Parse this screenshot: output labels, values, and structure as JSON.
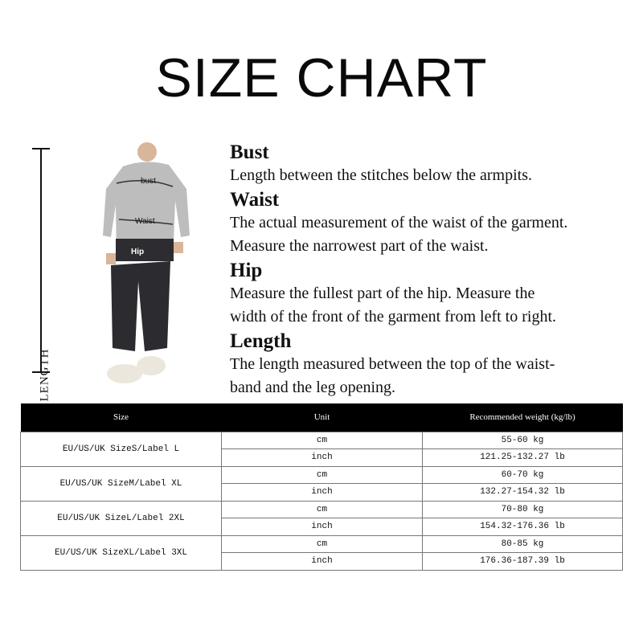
{
  "title": "SIZE CHART",
  "figure": {
    "length_label": "LENGTH",
    "bust_tag": "bust",
    "waist_tag": "Waist",
    "hip_tag": "Hip"
  },
  "sections": [
    {
      "heading": "Bust",
      "lines": [
        "Length between the stitches below the armpits."
      ]
    },
    {
      "heading": "Waist",
      "lines": [
        "The actual measurement of the waist of the garment.",
        "Measure the narrowest part of the waist."
      ]
    },
    {
      "heading": "Hip",
      "lines": [
        "Measure the fullest part of the  hip. Measure the",
        "width of the front of the garment from left to right."
      ]
    },
    {
      "heading": "Length",
      "lines": [
        "The length measured between the top of the waist-",
        "band and the leg opening."
      ]
    }
  ],
  "table": {
    "headers": [
      "Size",
      "Unit",
      "Recommended weight (kg/lb)"
    ],
    "rows": [
      {
        "size": "EU/US/UK SizeS/Label L",
        "cm": "55-60 kg",
        "inch": "121.25-132.27 lb"
      },
      {
        "size": "EU/US/UK SizeM/Label XL",
        "cm": "60-70 kg",
        "inch": "132.27-154.32 lb"
      },
      {
        "size": "EU/US/UK SizeL/Label 2XL",
        "cm": "70-80 kg",
        "inch": "154.32-176.36 lb"
      },
      {
        "size": "EU/US/UK SizeXL/Label 3XL",
        "cm": "80-85 kg",
        "inch": "176.36-187.39 lb"
      }
    ],
    "unit_cm": "cm",
    "unit_inch": "inch"
  }
}
